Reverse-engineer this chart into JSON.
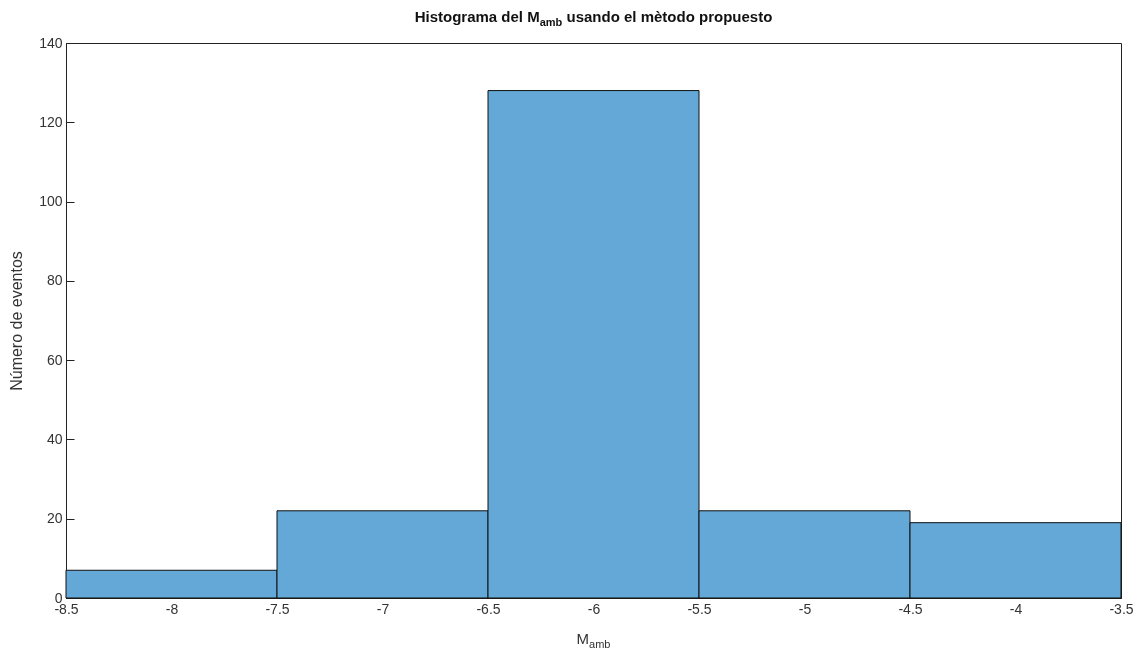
{
  "chart_data": {
    "type": "histogram",
    "title": "Histograma del M$_{amb}$ usando el mètodo propuesto",
    "xlabel": "M$_{amb}$",
    "ylabel": "Número de eventos",
    "bins": [
      -8.5,
      -7.5,
      -6.5,
      -5.5,
      -4.5,
      -3.5
    ],
    "values": [
      7,
      22,
      128,
      22,
      19
    ],
    "color": "#63a8d6",
    "xlim": [
      -8.5,
      -3.5
    ],
    "xticks": [
      -8.5,
      -8,
      -7.5,
      -7,
      -6.5,
      -6,
      -5.5,
      -5,
      -4.5,
      -4,
      -3.5
    ],
    "ylim": [
      0,
      140
    ],
    "yticks": [
      0,
      20,
      40,
      60,
      80,
      100,
      120,
      140
    ],
    "grid": false
  }
}
